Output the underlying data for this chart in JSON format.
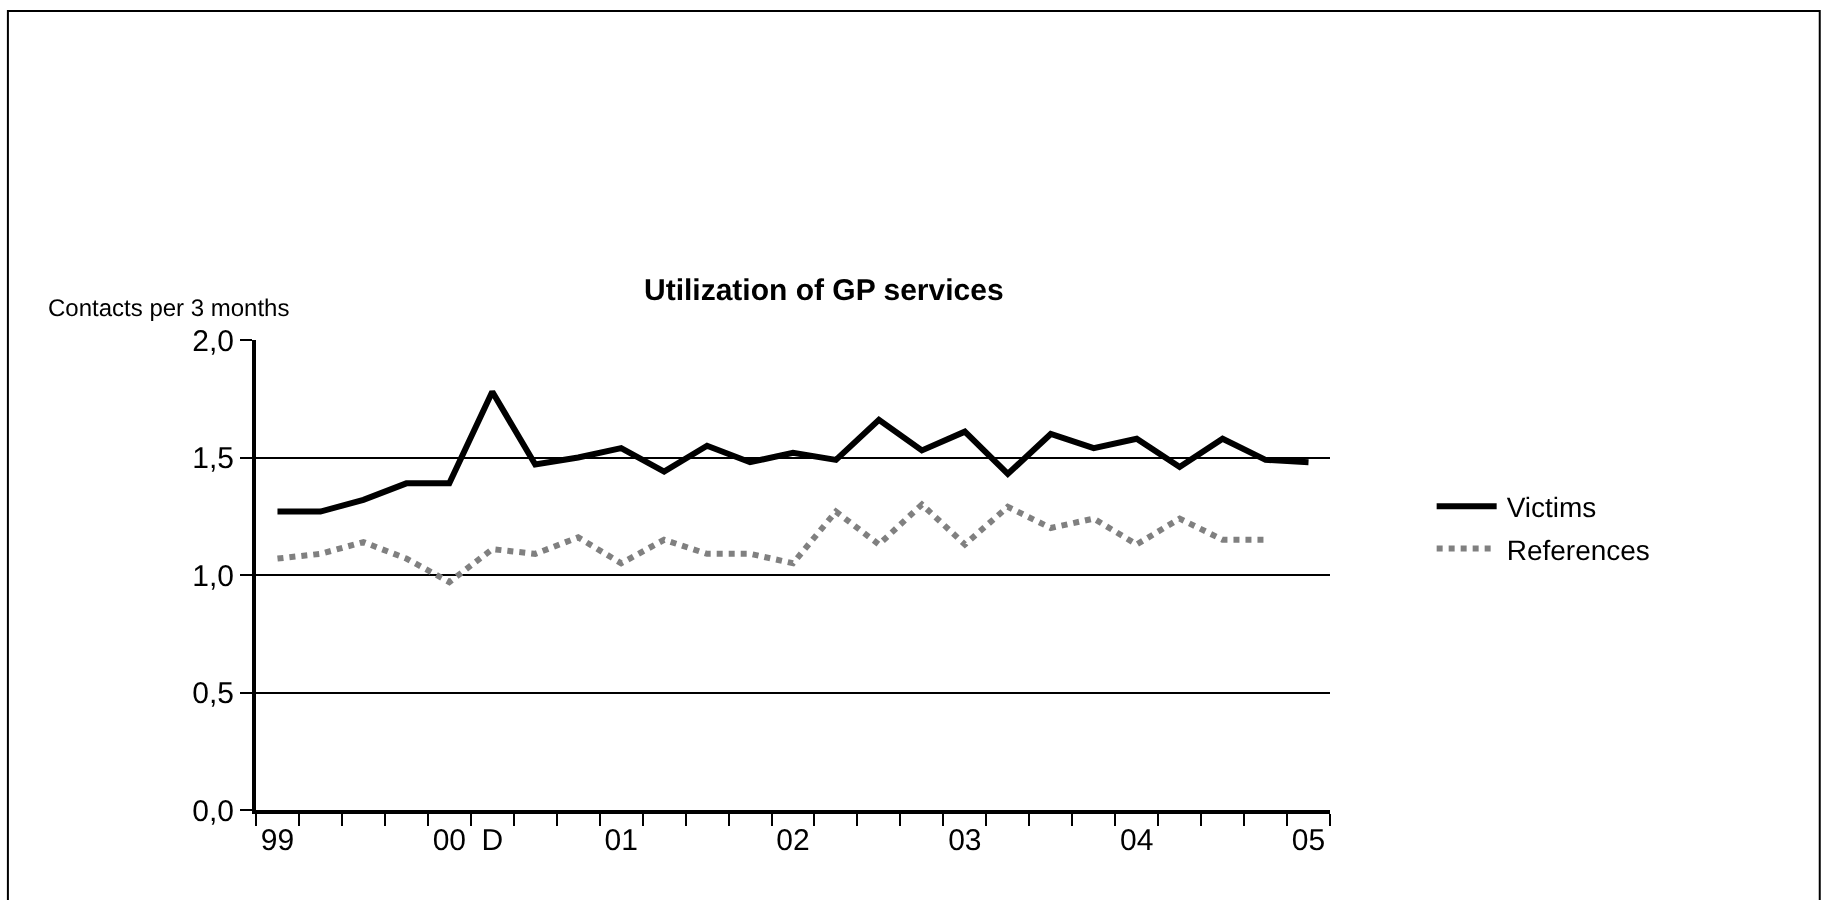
{
  "chart_data": {
    "type": "line",
    "title": "Utilization of GP services",
    "ylabel": "Contacts per 3 months",
    "categories": [
      "99",
      null,
      null,
      null,
      "00",
      "D",
      null,
      null,
      "01",
      null,
      null,
      null,
      "02",
      null,
      null,
      null,
      "03",
      null,
      null,
      null,
      "04",
      null,
      null,
      null,
      "05"
    ],
    "series": [
      {
        "name": "Victims",
        "color": "#000000",
        "line_style": "solid",
        "values": [
          1.27,
          1.27,
          1.32,
          1.39,
          1.39,
          1.78,
          1.47,
          1.5,
          1.54,
          1.44,
          1.55,
          1.48,
          1.52,
          1.49,
          1.66,
          1.53,
          1.61,
          1.43,
          1.6,
          1.54,
          1.58,
          1.46,
          1.58,
          1.49,
          1.48
        ]
      },
      {
        "name": "References",
        "color": "#808080",
        "line_style": "dotted",
        "values": [
          1.07,
          1.09,
          1.14,
          1.07,
          0.97,
          1.11,
          1.09,
          1.16,
          1.05,
          1.15,
          1.09,
          1.09,
          1.05,
          1.27,
          1.13,
          1.3,
          1.13,
          1.29,
          1.2,
          1.24,
          1.13,
          1.24,
          1.15,
          1.15,
          null
        ]
      }
    ],
    "ylim": [
      0,
      2
    ],
    "yticks": [
      {
        "value": 0,
        "label": "0,0"
      },
      {
        "value": 0.5,
        "label": "0,5"
      },
      {
        "value": 1,
        "label": "1,0"
      },
      {
        "value": 1.5,
        "label": "1,5"
      },
      {
        "value": 2,
        "label": "2,0"
      }
    ],
    "grid": "y",
    "legend": "right",
    "marker": "none"
  }
}
